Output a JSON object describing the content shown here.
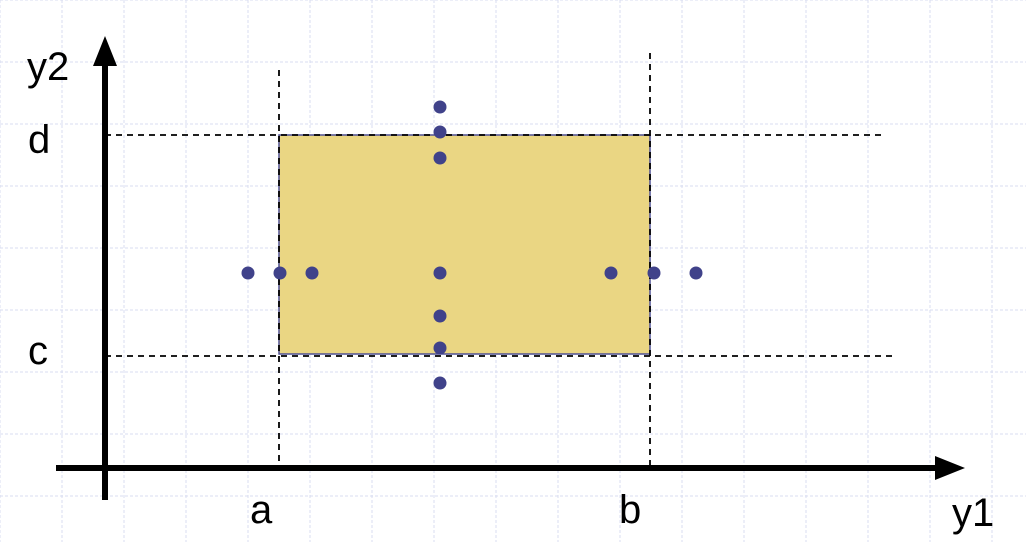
{
  "labels": {
    "y_axis": "y2",
    "x_axis": "y1",
    "d": "d",
    "c": "c",
    "a": "a",
    "b": "b"
  },
  "colors": {
    "region_fill": "#EAD683",
    "region_stroke": "#4F5093",
    "point": "#40428A",
    "grid": "#D8DCF0",
    "axis": "#000000"
  },
  "points_count": 13
}
